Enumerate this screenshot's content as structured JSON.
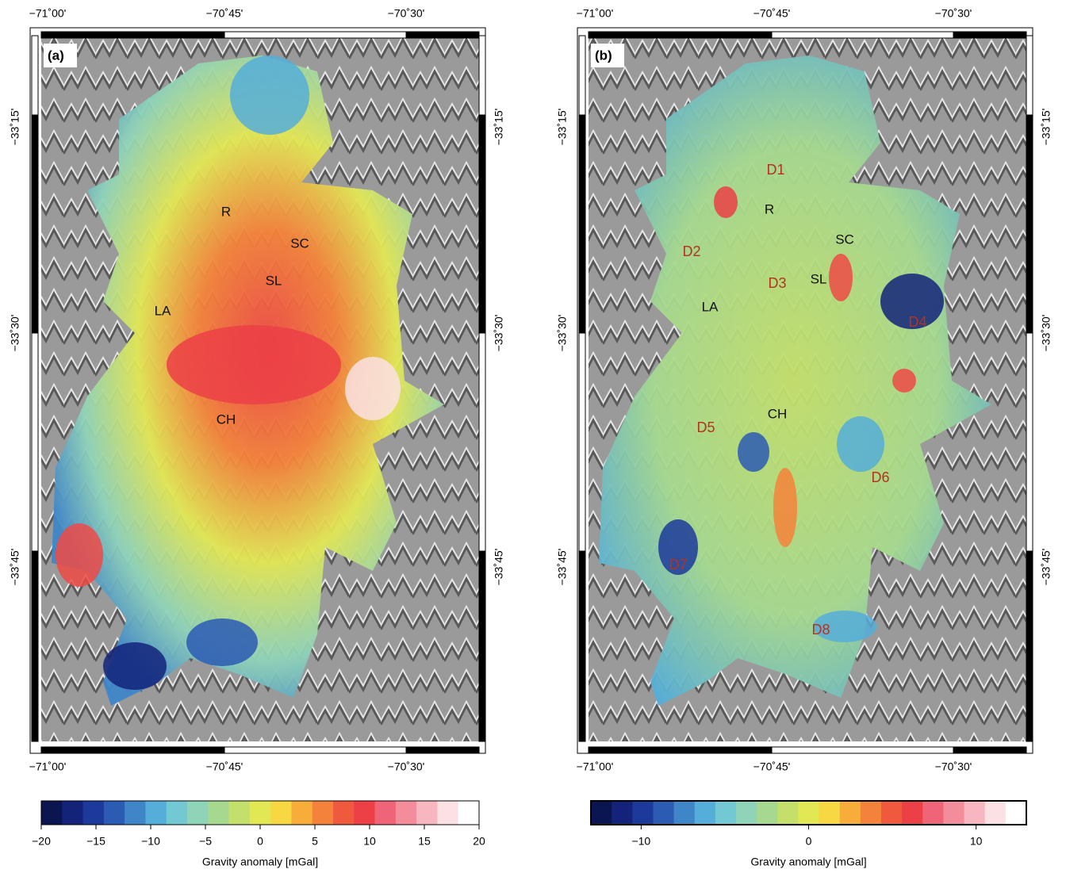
{
  "palette": [
    "#0b1550",
    "#13237a",
    "#1c3a9b",
    "#2c5bb4",
    "#3f86c8",
    "#55aed9",
    "#72c8d3",
    "#8fd3b9",
    "#a6d98f",
    "#c4e06a",
    "#e2e754",
    "#f7d842",
    "#f8ad3a",
    "#f4823a",
    "#ef5a3e",
    "#ec3f46",
    "#ef6577",
    "#f38d9b",
    "#f7b7c0",
    "#fbe0e4",
    "#ffffff"
  ],
  "panels": [
    {
      "label": "(a)",
      "x_ticks": [
        "−71˚00'",
        "−70˚45'",
        "−70˚30'"
      ],
      "y_ticks": [
        "−33˚15'",
        "−33˚30'",
        "−33˚45'"
      ],
      "places": [
        "R",
        "SC",
        "SL",
        "LA",
        "CH"
      ],
      "colorbar": {
        "lim": [
          -20,
          20
        ],
        "ticks": [
          {
            "value": -20,
            "label": "−20"
          },
          {
            "value": -15,
            "label": "−15"
          },
          {
            "value": -10,
            "label": "−10"
          },
          {
            "value": -5,
            "label": "−5"
          },
          0,
          5,
          10,
          15,
          20
        ],
        "label": "Gravity anomaly [mGal]"
      }
    },
    {
      "label": "(b)",
      "x_ticks": [
        "−71˚00'",
        "−70˚45'",
        "−70˚30'"
      ],
      "y_ticks": [
        "−33˚15'",
        "−33˚30'",
        "−33˚45'"
      ],
      "places": [
        "D1",
        "R",
        "D2",
        "SC",
        "SL",
        "D3",
        "LA",
        "D4",
        "CH",
        "D5",
        "D6",
        "D7",
        "D8"
      ],
      "colorbar": {
        "lim": [
          -13,
          13
        ],
        "ticks": [
          {
            "value": -10,
            "label": "−10"
          },
          0,
          10
        ],
        "label": "Gravity anomaly [mGal]"
      }
    }
  ]
}
